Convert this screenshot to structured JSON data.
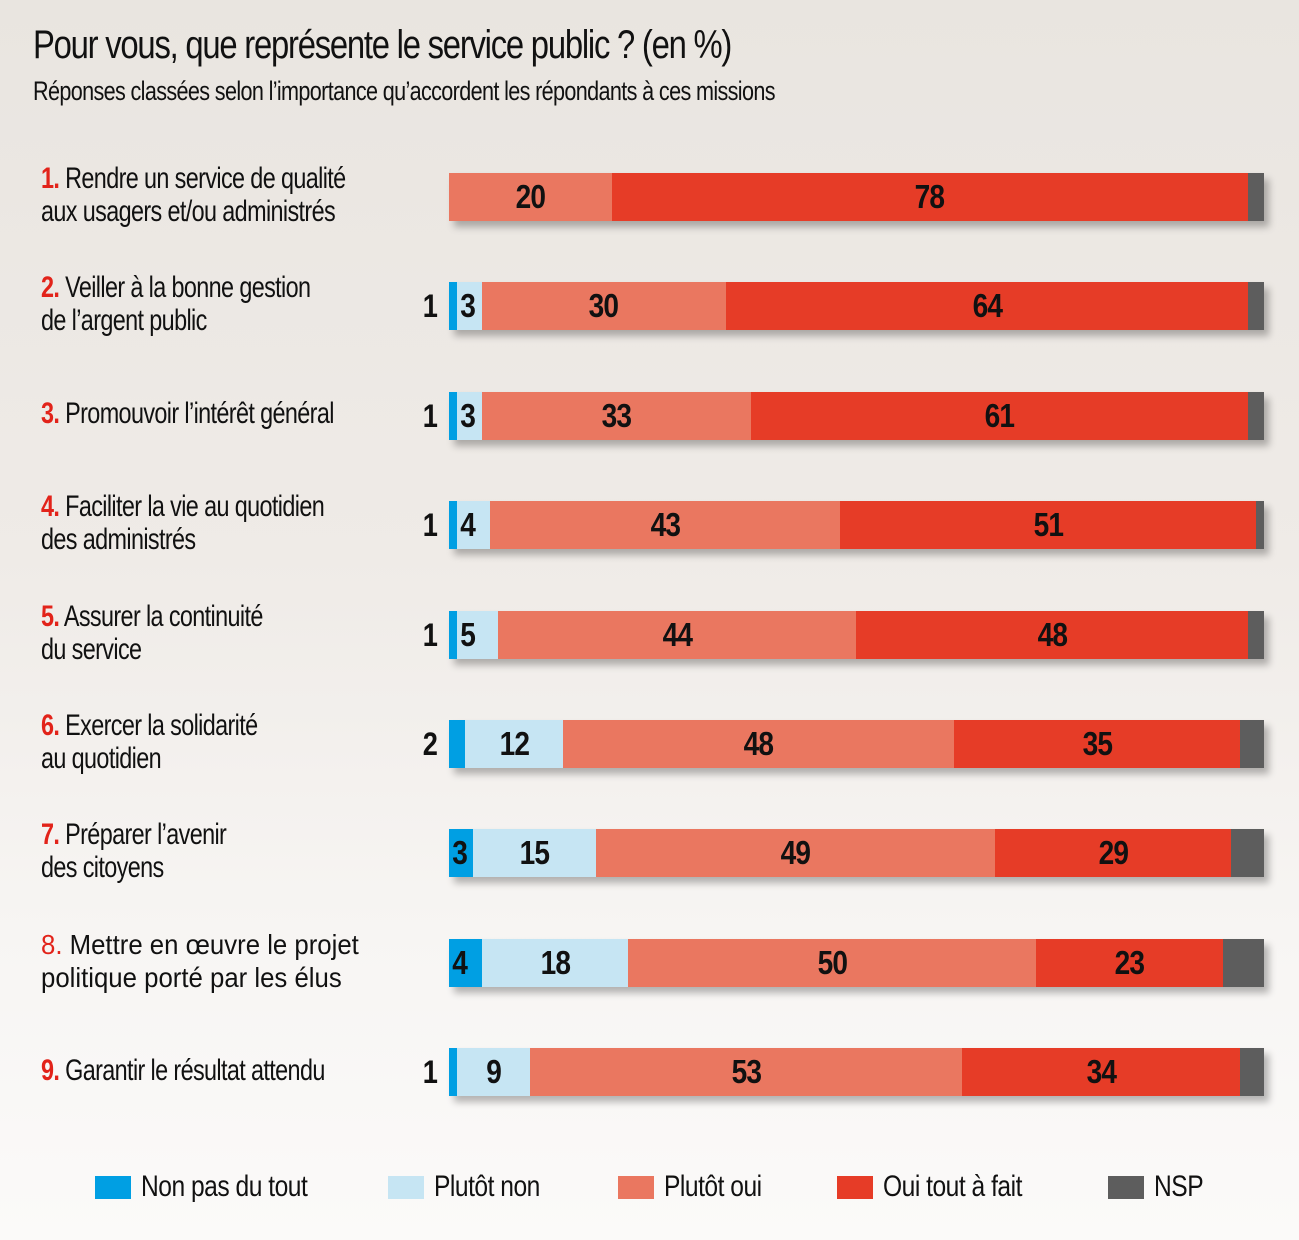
{
  "chart_data": {
    "type": "bar",
    "orientation": "horizontal",
    "stacked": true,
    "title": "Pour vous, que représente le service public ? (en %)",
    "subtitle": "Réponses classées selon l’importance qu’accordent les répondants à ces missions",
    "xlabel": "",
    "ylabel": "",
    "xlim": [
      0,
      100
    ],
    "unit": "%",
    "legend_position": "bottom",
    "categories": [
      {
        "rank": "1.",
        "text": [
          "Rendre un service de qualité",
          "aux usagers et/ou administrés"
        ],
        "style": "bold-number"
      },
      {
        "rank": "2.",
        "text": [
          "Veiller à la bonne gestion",
          "de l’argent public"
        ],
        "style": "bold-number"
      },
      {
        "rank": "3.",
        "text": [
          "Promouvoir l’intérêt général"
        ],
        "style": "bold-number"
      },
      {
        "rank": "4.",
        "text": [
          "Faciliter la vie au quotidien",
          "des administrés"
        ],
        "style": "bold-number"
      },
      {
        "rank": "5.",
        "text": [
          "Assurer la continuité",
          "du service"
        ],
        "style": "bold-number"
      },
      {
        "rank": "6.",
        "text": [
          "Exercer la solidarité",
          "au quotidien"
        ],
        "style": "bold-number"
      },
      {
        "rank": "7.",
        "text": [
          "Préparer l’avenir",
          "des citoyens"
        ],
        "style": "bold-number"
      },
      {
        "rank": "8.",
        "text": [
          "Mettre en œuvre le projet",
          "politique porté par les élus"
        ],
        "style": "regular"
      },
      {
        "rank": "9.",
        "text": [
          "Garantir le résultat attendu"
        ],
        "style": "bold-number"
      }
    ],
    "series": [
      {
        "name": "Non pas du tout",
        "color": "#009fe3",
        "values": [
          0,
          1,
          1,
          1,
          1,
          2,
          3,
          4,
          1
        ],
        "label_mode": [
          null,
          "outside",
          "outside",
          "outside",
          "outside",
          "outside",
          "inside",
          "inside",
          "outside"
        ]
      },
      {
        "name": "Plutôt non",
        "color": "#c6e5f3",
        "values": [
          0,
          3,
          3,
          4,
          5,
          12,
          15,
          18,
          9
        ]
      },
      {
        "name": "Plutôt oui",
        "color": "#ea7760",
        "values": [
          20,
          30,
          33,
          43,
          44,
          48,
          49,
          50,
          53
        ]
      },
      {
        "name": "Oui tout à fait",
        "color": "#e63c27",
        "values": [
          78,
          64,
          61,
          51,
          48,
          35,
          29,
          23,
          34
        ]
      },
      {
        "name": "NSP",
        "color": "#5d5d5d",
        "values": [
          2,
          2,
          2,
          1,
          2,
          3,
          4,
          5,
          3
        ],
        "label_mode": "none"
      }
    ]
  },
  "colors": {
    "rank_number": "#e2231a",
    "text": "#111111"
  }
}
